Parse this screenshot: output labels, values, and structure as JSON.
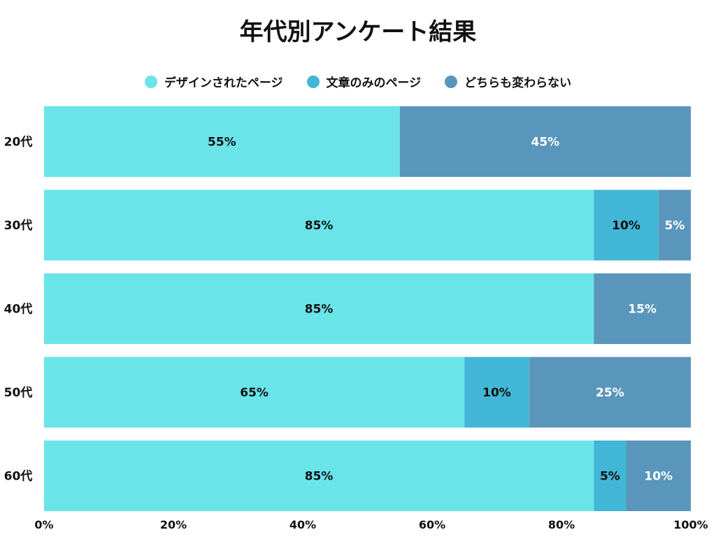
{
  "chart_data": {
    "type": "bar",
    "orientation": "horizontal",
    "stacked": true,
    "title": "年代別アンケート結果",
    "categories": [
      "20代",
      "30代",
      "40代",
      "50代",
      "60代"
    ],
    "series": [
      {
        "name": "デザインされたページ",
        "color": "#6ae4e9",
        "label_color": "#111111",
        "values": [
          55,
          85,
          85,
          65,
          85
        ]
      },
      {
        "name": "文章のみのページ",
        "color": "#42b6d6",
        "label_color": "#111111",
        "values": [
          0,
          10,
          0,
          10,
          5
        ]
      },
      {
        "name": "どちらも変わらない",
        "color": "#5a96bb",
        "label_color": "#ffffff",
        "values": [
          45,
          5,
          15,
          25,
          10
        ]
      }
    ],
    "xlim": [
      0,
      100
    ],
    "xticks": [
      "0%",
      "20%",
      "40%",
      "60%",
      "80%",
      "100%"
    ],
    "grid": false,
    "legend_position": "top"
  }
}
